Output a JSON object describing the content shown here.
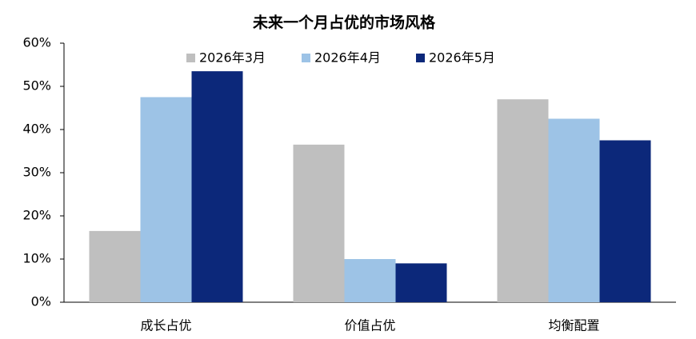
{
  "chart_data": {
    "type": "bar",
    "title": "未来一个月占优的市场风格",
    "categories": [
      "成长占优",
      "价值占优",
      "均衡配置"
    ],
    "series": [
      {
        "name": "2026年3月",
        "color": "#bfbfbf",
        "values": [
          16.5,
          36.5,
          47
        ]
      },
      {
        "name": "2026年4月",
        "color": "#9dc3e6",
        "values": [
          47.5,
          10,
          42.5
        ]
      },
      {
        "name": "2026年5月",
        "color": "#0c287a",
        "values": [
          53.5,
          9,
          37.5
        ]
      }
    ],
    "ylim": [
      0,
      60
    ],
    "yticks": [
      {
        "value": 0,
        "label": "0%"
      },
      {
        "value": 10,
        "label": "10%"
      },
      {
        "value": 20,
        "label": "20%"
      },
      {
        "value": 30,
        "label": "30%"
      },
      {
        "value": 40,
        "label": "40%"
      },
      {
        "value": 50,
        "label": "50%"
      },
      {
        "value": 60,
        "label": "60%"
      }
    ],
    "grid": false
  }
}
